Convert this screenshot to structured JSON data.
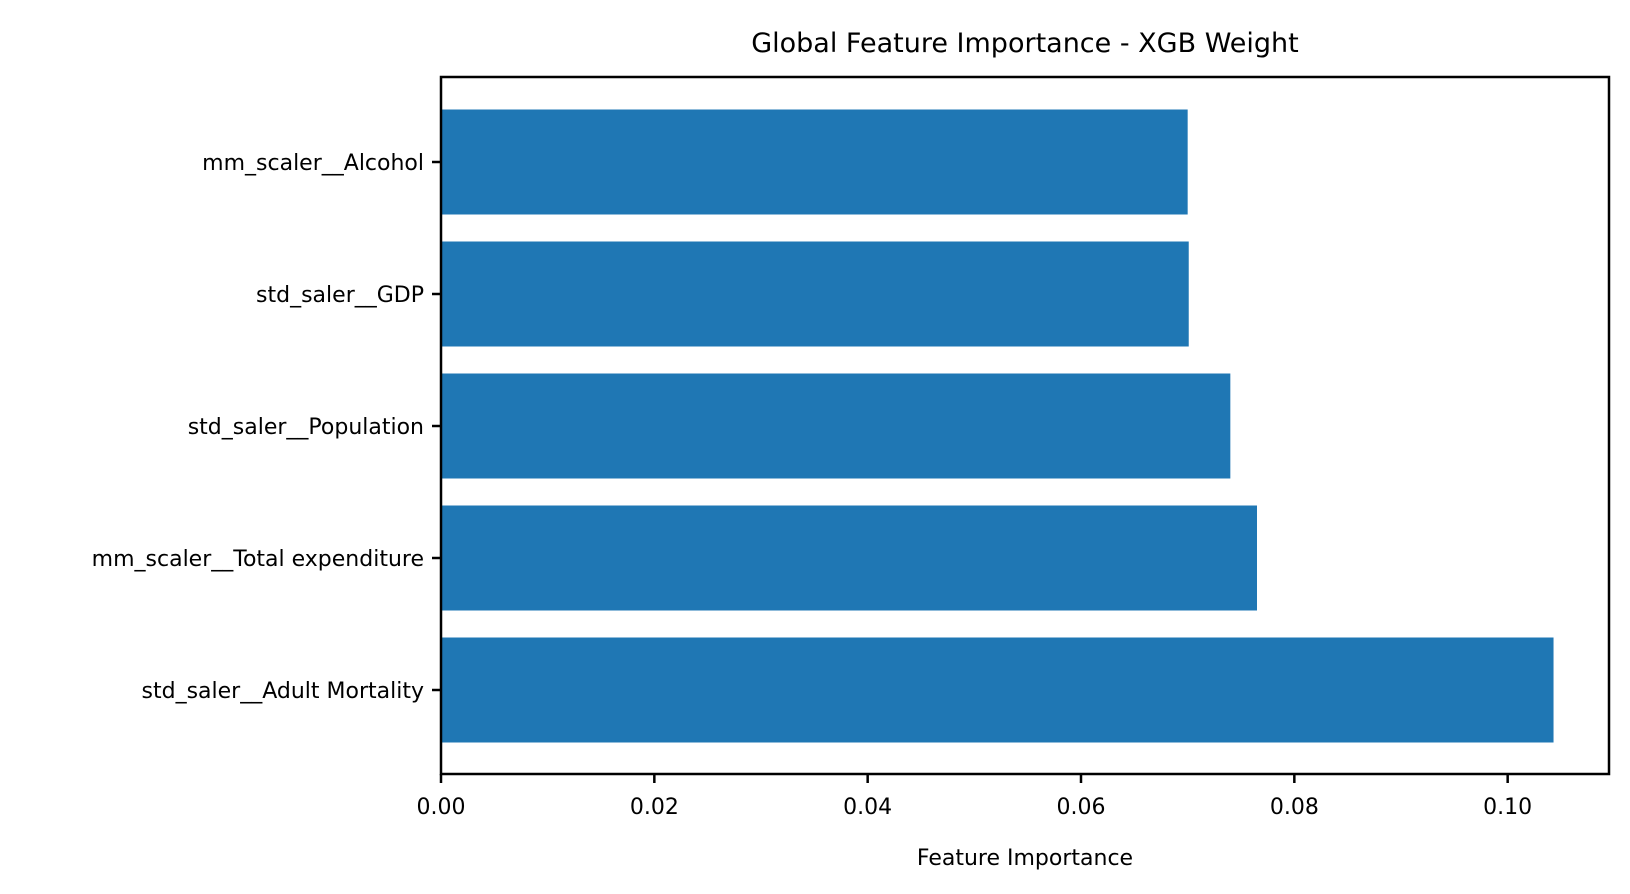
{
  "chart_data": {
    "type": "bar",
    "orientation": "horizontal",
    "title": "Global Feature Importance - XGB Weight",
    "xlabel": "Feature Importance",
    "ylabel": "",
    "categories": [
      "mm_scaler__Alcohol",
      "std_saler__GDP",
      "std_saler__Population",
      "mm_scaler__Total expenditure",
      "std_saler__Adult Mortality"
    ],
    "values": [
      0.07,
      0.0701,
      0.074,
      0.0765,
      0.1043
    ],
    "xlim": [
      0.0,
      0.1095
    ],
    "xticks": [
      0.0,
      0.02,
      0.04,
      0.06,
      0.08,
      0.1
    ],
    "xtick_labels": [
      "0.00",
      "0.02",
      "0.04",
      "0.06",
      "0.08",
      "0.10"
    ],
    "bar_color": "#1f77b4",
    "grid": false,
    "legend": "none"
  }
}
